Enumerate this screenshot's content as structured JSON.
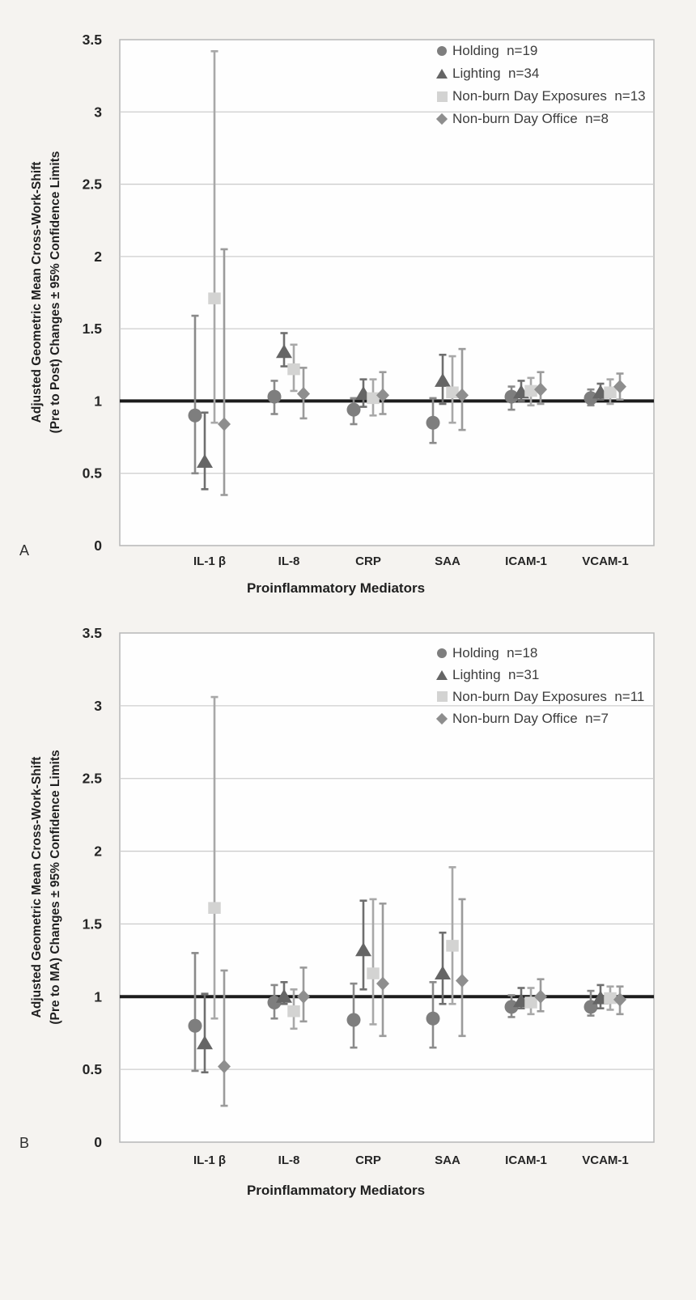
{
  "figure": {
    "background": "#f5f3f0",
    "plot_background": "#fefefe",
    "grid_color": "#cdcdcd",
    "border_color": "#b7b7b7",
    "reference_line_color": "#1c1c1c"
  },
  "chart_data": [
    {
      "type": "scatter",
      "panel_label": "A",
      "xlabel": "Proinflammatory Mediators",
      "ylabel_lines": [
        "Adjusted Geometric Mean Cross-Work-Shift",
        "(Pre to Post) Changes ± 95% Confidence Limits"
      ],
      "categories": [
        "IL-1 β",
        "IL-8",
        "CRP",
        "SAA",
        "ICAM-1",
        "VCAM-1"
      ],
      "ylim": [
        0,
        3.5
      ],
      "yticks": [
        0,
        0.5,
        1,
        1.5,
        2,
        2.5,
        3,
        3.5
      ],
      "reference_line": 1,
      "grid": true,
      "legend_position": "top-right",
      "series": [
        {
          "name": "Holding",
          "n": 19,
          "legend_label": "Holding  n=19",
          "marker": "circle",
          "color": "#7e7e7e",
          "bar_color": "#8a8a8a",
          "values": [
            0.9,
            1.03,
            0.94,
            0.85,
            1.03,
            1.02
          ],
          "ci_low": [
            0.5,
            0.91,
            0.84,
            0.71,
            0.94,
            0.97
          ],
          "ci_high": [
            1.59,
            1.14,
            1.02,
            1.02,
            1.1,
            1.08
          ]
        },
        {
          "name": "Lighting",
          "n": 34,
          "legend_label": "Lighting  n=34",
          "marker": "triangle",
          "color": "#656565",
          "bar_color": "#6f6f6f",
          "values": [
            0.58,
            1.34,
            1.05,
            1.14,
            1.06,
            1.06
          ],
          "ci_low": [
            0.39,
            1.24,
            0.96,
            0.98,
            1.0,
            1.01
          ],
          "ci_high": [
            0.92,
            1.47,
            1.15,
            1.32,
            1.14,
            1.12
          ]
        },
        {
          "name": "Non-burn Day Exposures",
          "n": 13,
          "legend_label": "Non-burn Day Exposures  n=13",
          "marker": "square",
          "color": "#d3d3d2",
          "bar_color": "#a8a8a8",
          "values": [
            1.71,
            1.22,
            1.02,
            1.06,
            1.07,
            1.06
          ],
          "ci_low": [
            0.85,
            1.07,
            0.9,
            0.85,
            0.97,
            0.98
          ],
          "ci_high": [
            3.42,
            1.39,
            1.15,
            1.31,
            1.16,
            1.15
          ]
        },
        {
          "name": "Non-burn Day Office",
          "n": 8,
          "legend_label": "Non-burn Day Office  n=8",
          "marker": "diamond",
          "color": "#8e8e8e",
          "bar_color": "#9b9b9b",
          "values": [
            0.84,
            1.05,
            1.04,
            1.04,
            1.08,
            1.1
          ],
          "ci_low": [
            0.35,
            0.88,
            0.91,
            0.8,
            0.98,
            1.01
          ],
          "ci_high": [
            2.05,
            1.23,
            1.2,
            1.36,
            1.2,
            1.19
          ]
        }
      ]
    },
    {
      "type": "scatter",
      "panel_label": "B",
      "xlabel": "Proinflammatory Mediators",
      "ylabel_lines": [
        "Adjusted Geometric Mean Cross-Work-Shift",
        "(Pre to MA) Changes ± 95% Confidence Limits"
      ],
      "categories": [
        "IL-1 β",
        "IL-8",
        "CRP",
        "SAA",
        "ICAM-1",
        "VCAM-1"
      ],
      "ylim": [
        0,
        3.5
      ],
      "yticks": [
        0,
        0.5,
        1,
        1.5,
        2,
        2.5,
        3,
        3.5
      ],
      "reference_line": 1,
      "grid": true,
      "legend_position": "top-right",
      "series": [
        {
          "name": "Holding",
          "n": 18,
          "legend_label": "Holding  n=18",
          "marker": "circle",
          "color": "#7e7e7e",
          "bar_color": "#8a8a8a",
          "values": [
            0.8,
            0.96,
            0.84,
            0.85,
            0.93,
            0.93
          ],
          "ci_low": [
            0.49,
            0.85,
            0.65,
            0.65,
            0.86,
            0.87
          ],
          "ci_high": [
            1.3,
            1.08,
            1.09,
            1.1,
            1.01,
            1.04
          ]
        },
        {
          "name": "Lighting",
          "n": 31,
          "legend_label": "Lighting  n=31",
          "marker": "triangle",
          "color": "#656565",
          "bar_color": "#6f6f6f",
          "values": [
            0.68,
            1.0,
            1.32,
            1.16,
            0.97,
            0.99
          ],
          "ci_low": [
            0.48,
            0.95,
            1.05,
            0.95,
            0.92,
            0.92
          ],
          "ci_high": [
            1.02,
            1.1,
            1.66,
            1.44,
            1.06,
            1.08
          ]
        },
        {
          "name": "Non-burn Day Exposures",
          "n": 11,
          "legend_label": "Non-burn Day Exposures  n=11",
          "marker": "square",
          "color": "#d3d3d2",
          "bar_color": "#a8a8a8",
          "values": [
            1.61,
            0.9,
            1.16,
            1.35,
            0.96,
            0.99
          ],
          "ci_low": [
            0.85,
            0.78,
            0.81,
            0.95,
            0.88,
            0.91
          ],
          "ci_high": [
            3.06,
            1.05,
            1.67,
            1.89,
            1.06,
            1.07
          ]
        },
        {
          "name": "Non-burn Day Office",
          "n": 7,
          "legend_label": "Non-burn Day Office  n=7",
          "marker": "diamond",
          "color": "#8e8e8e",
          "bar_color": "#9b9b9b",
          "values": [
            0.52,
            1.0,
            1.09,
            1.11,
            1.0,
            0.98
          ],
          "ci_low": [
            0.25,
            0.83,
            0.73,
            0.73,
            0.9,
            0.88
          ],
          "ci_high": [
            1.18,
            1.2,
            1.64,
            1.67,
            1.12,
            1.07
          ]
        }
      ]
    }
  ]
}
